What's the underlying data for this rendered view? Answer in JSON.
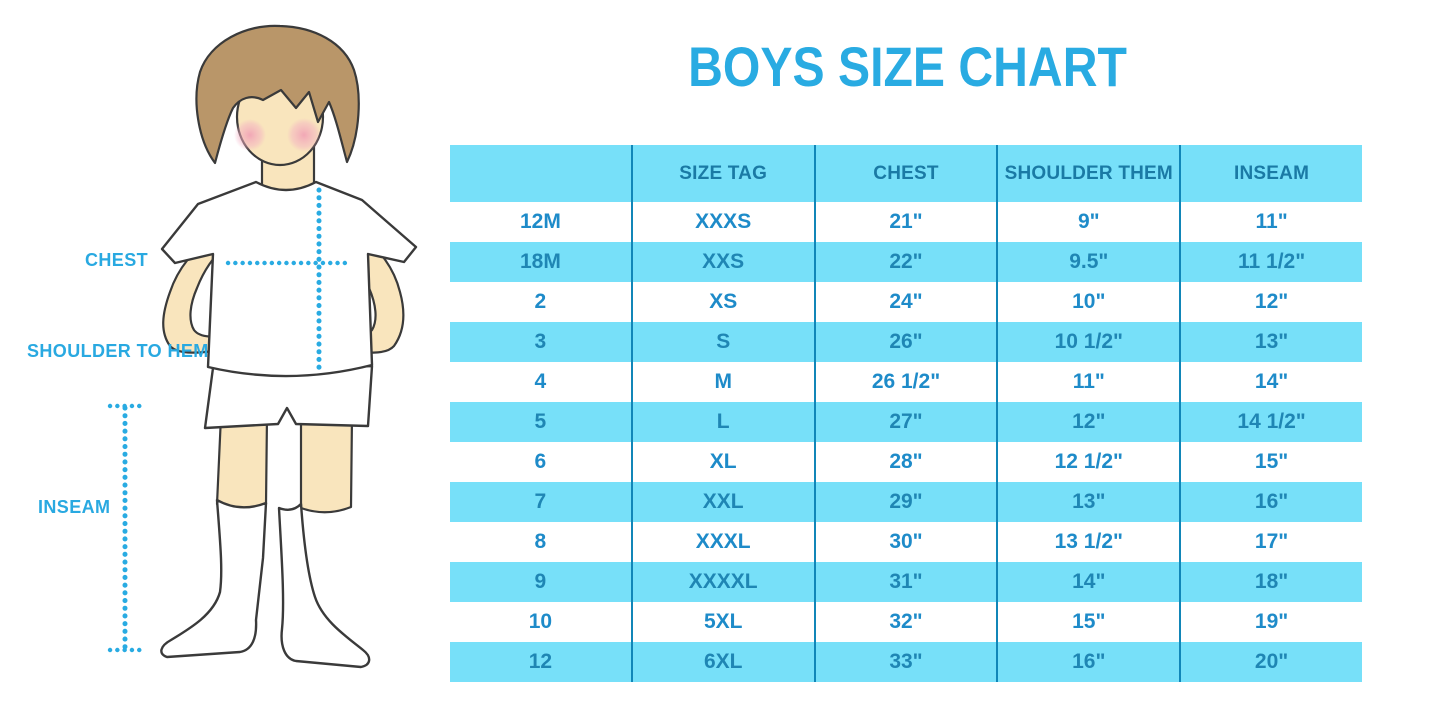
{
  "title": "BOYS SIZE CHART",
  "figure": {
    "labels": {
      "chest": "CHEST",
      "shoulder_to_hem": "SHOULDER TO HEM",
      "inseam": "INSEAM"
    }
  },
  "chart_data": {
    "type": "table",
    "title": "BOYS SIZE CHART",
    "columns": [
      "",
      "SIZE TAG",
      "CHEST",
      "SHOULDER THEM",
      "INSEAM"
    ],
    "rows": [
      [
        "12M",
        "XXXS",
        "21\"",
        "9\"",
        "11\""
      ],
      [
        "18M",
        "XXS",
        "22\"",
        "9.5\"",
        "11 1/2\""
      ],
      [
        "2",
        "XS",
        "24\"",
        "10\"",
        "12\""
      ],
      [
        "3",
        "S",
        "26\"",
        "10 1/2\"",
        "13\""
      ],
      [
        "4",
        "M",
        "26 1/2\"",
        "11\"",
        "14\""
      ],
      [
        "5",
        "L",
        "27\"",
        "12\"",
        "14 1/2\""
      ],
      [
        "6",
        "XL",
        "28\"",
        "12 1/2\"",
        "15\""
      ],
      [
        "7",
        "XXL",
        "29\"",
        "13\"",
        "16\""
      ],
      [
        "8",
        "XXXL",
        "30\"",
        "13 1/2\"",
        "17\""
      ],
      [
        "9",
        "XXXXL",
        "31\"",
        "14\"",
        "18\""
      ],
      [
        "10",
        "5XL",
        "32\"",
        "15\"",
        "19\""
      ],
      [
        "12",
        "6XL",
        "33\"",
        "16\"",
        "20\""
      ]
    ],
    "layout": {
      "striped": true,
      "first_data_row_background": "white",
      "header_position": "top",
      "grid": "vertical-dividers-only"
    }
  },
  "colors": {
    "title": "#29ABE2",
    "label": "#29A9E1",
    "dotted_line": "#29ABE2",
    "stripe_bg": "#77E0F9",
    "divider": "#1186B8",
    "header_text": "#1A7AA5",
    "text_on_white": "#1E8BC9",
    "text_on_stripe": "#1F86B4",
    "skin": "#F9E5BD",
    "hair": "#B99669",
    "blush": "#F2A9BE",
    "outline": "#3A3A3A"
  }
}
